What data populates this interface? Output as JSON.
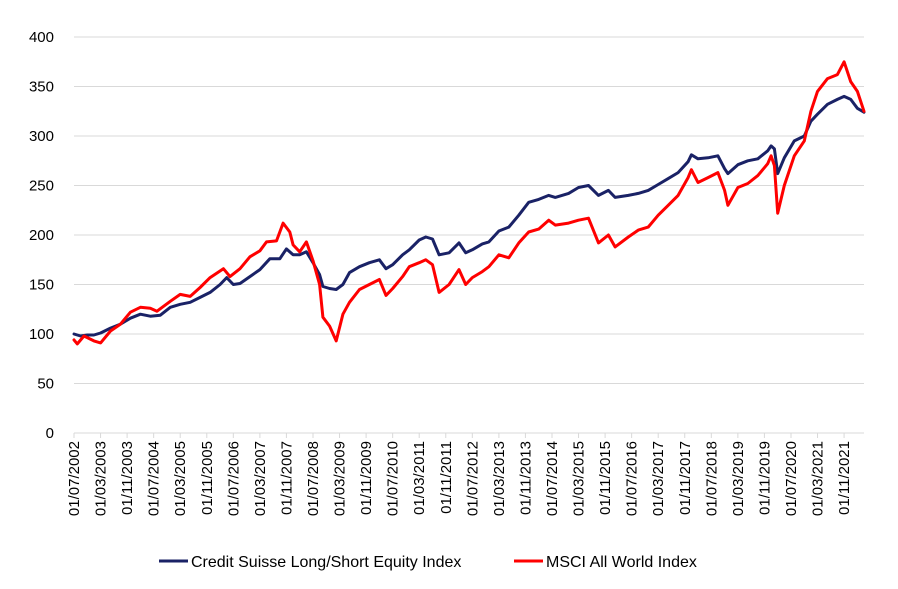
{
  "chart_data": {
    "type": "line",
    "title": "",
    "xlabel": "",
    "ylabel": "",
    "ylim": [
      0,
      400
    ],
    "yticks": [
      0,
      50,
      100,
      150,
      200,
      250,
      300,
      350,
      400
    ],
    "grid": "horizontal",
    "legend_position": "bottom",
    "xlim": [
      "2002-07",
      "2022-05"
    ],
    "xtick_labels": [
      "01/07/2002",
      "01/03/2003",
      "01/11/2003",
      "01/07/2004",
      "01/03/2005",
      "01/11/2005",
      "01/07/2006",
      "01/03/2007",
      "01/11/2007",
      "01/07/2008",
      "01/03/2009",
      "01/11/2009",
      "01/07/2010",
      "01/03/2011",
      "01/11/2011",
      "01/07/2012",
      "01/03/2013",
      "01/11/2013",
      "01/07/2014",
      "01/03/2015",
      "01/11/2015",
      "01/07/2016",
      "01/03/2017",
      "01/11/2017",
      "01/07/2018",
      "01/03/2019",
      "01/11/2019",
      "01/07/2020",
      "01/03/2021",
      "01/11/2021"
    ],
    "series": [
      {
        "name": "Credit Suisse Long/Short Equity Index",
        "color": "#1a2266",
        "points": [
          [
            "2002-07",
            100
          ],
          [
            "2002-09",
            98
          ],
          [
            "2002-11",
            99
          ],
          [
            "2003-01",
            99
          ],
          [
            "2003-03",
            101
          ],
          [
            "2003-06",
            106
          ],
          [
            "2003-09",
            110
          ],
          [
            "2003-12",
            116
          ],
          [
            "2004-03",
            120
          ],
          [
            "2004-06",
            118
          ],
          [
            "2004-09",
            119
          ],
          [
            "2004-12",
            127
          ],
          [
            "2005-03",
            130
          ],
          [
            "2005-06",
            132
          ],
          [
            "2005-09",
            137
          ],
          [
            "2005-12",
            142
          ],
          [
            "2006-03",
            150
          ],
          [
            "2006-05",
            157
          ],
          [
            "2006-07",
            150
          ],
          [
            "2006-09",
            151
          ],
          [
            "2006-12",
            158
          ],
          [
            "2007-03",
            165
          ],
          [
            "2007-06",
            176
          ],
          [
            "2007-09",
            176
          ],
          [
            "2007-11",
            186
          ],
          [
            "2008-01",
            180
          ],
          [
            "2008-03",
            180
          ],
          [
            "2008-05",
            183
          ],
          [
            "2008-07",
            172
          ],
          [
            "2008-09",
            160
          ],
          [
            "2008-10",
            148
          ],
          [
            "2008-12",
            146
          ],
          [
            "2009-02",
            145
          ],
          [
            "2009-04",
            150
          ],
          [
            "2009-06",
            162
          ],
          [
            "2009-09",
            168
          ],
          [
            "2009-12",
            172
          ],
          [
            "2010-03",
            175
          ],
          [
            "2010-05",
            166
          ],
          [
            "2010-07",
            170
          ],
          [
            "2010-10",
            180
          ],
          [
            "2010-12",
            185
          ],
          [
            "2011-03",
            195
          ],
          [
            "2011-05",
            198
          ],
          [
            "2011-07",
            196
          ],
          [
            "2011-09",
            180
          ],
          [
            "2011-12",
            182
          ],
          [
            "2012-03",
            192
          ],
          [
            "2012-05",
            182
          ],
          [
            "2012-07",
            185
          ],
          [
            "2012-10",
            191
          ],
          [
            "2012-12",
            193
          ],
          [
            "2013-03",
            204
          ],
          [
            "2013-06",
            208
          ],
          [
            "2013-09",
            220
          ],
          [
            "2013-12",
            233
          ],
          [
            "2014-03",
            236
          ],
          [
            "2014-06",
            240
          ],
          [
            "2014-08",
            238
          ],
          [
            "2014-12",
            242
          ],
          [
            "2015-03",
            248
          ],
          [
            "2015-06",
            250
          ],
          [
            "2015-09",
            240
          ],
          [
            "2015-12",
            245
          ],
          [
            "2016-02",
            238
          ],
          [
            "2016-06",
            240
          ],
          [
            "2016-09",
            242
          ],
          [
            "2016-12",
            245
          ],
          [
            "2017-03",
            251
          ],
          [
            "2017-06",
            257
          ],
          [
            "2017-09",
            263
          ],
          [
            "2017-12",
            274
          ],
          [
            "2018-01",
            281
          ],
          [
            "2018-03",
            277
          ],
          [
            "2018-06",
            278
          ],
          [
            "2018-09",
            280
          ],
          [
            "2018-11",
            267
          ],
          [
            "2018-12",
            262
          ],
          [
            "2019-03",
            271
          ],
          [
            "2019-06",
            275
          ],
          [
            "2019-09",
            277
          ],
          [
            "2019-12",
            285
          ],
          [
            "2020-01",
            290
          ],
          [
            "2020-02",
            287
          ],
          [
            "2020-03",
            262
          ],
          [
            "2020-05",
            278
          ],
          [
            "2020-08",
            295
          ],
          [
            "2020-11",
            300
          ],
          [
            "2021-01",
            315
          ],
          [
            "2021-03",
            322
          ],
          [
            "2021-06",
            332
          ],
          [
            "2021-09",
            337
          ],
          [
            "2021-11",
            340
          ],
          [
            "2022-01",
            337
          ],
          [
            "2022-03",
            328
          ],
          [
            "2022-05",
            324
          ]
        ]
      },
      {
        "name": "MSCI All World Index",
        "color": "#ff0000",
        "points": [
          [
            "2002-07",
            94
          ],
          [
            "2002-08",
            90
          ],
          [
            "2002-10",
            98
          ],
          [
            "2003-01",
            93
          ],
          [
            "2003-03",
            91
          ],
          [
            "2003-06",
            103
          ],
          [
            "2003-09",
            110
          ],
          [
            "2003-12",
            122
          ],
          [
            "2004-03",
            127
          ],
          [
            "2004-06",
            126
          ],
          [
            "2004-08",
            123
          ],
          [
            "2004-12",
            133
          ],
          [
            "2005-03",
            140
          ],
          [
            "2005-06",
            138
          ],
          [
            "2005-09",
            147
          ],
          [
            "2005-12",
            157
          ],
          [
            "2006-04",
            166
          ],
          [
            "2006-06",
            158
          ],
          [
            "2006-09",
            166
          ],
          [
            "2006-12",
            178
          ],
          [
            "2007-03",
            184
          ],
          [
            "2007-05",
            193
          ],
          [
            "2007-08",
            194
          ],
          [
            "2007-10",
            212
          ],
          [
            "2007-12",
            203
          ],
          [
            "2008-01",
            190
          ],
          [
            "2008-03",
            183
          ],
          [
            "2008-05",
            193
          ],
          [
            "2008-07",
            174
          ],
          [
            "2008-09",
            150
          ],
          [
            "2008-10",
            117
          ],
          [
            "2008-12",
            108
          ],
          [
            "2009-02",
            93
          ],
          [
            "2009-04",
            120
          ],
          [
            "2009-06",
            132
          ],
          [
            "2009-09",
            145
          ],
          [
            "2009-12",
            150
          ],
          [
            "2010-03",
            155
          ],
          [
            "2010-05",
            139
          ],
          [
            "2010-07",
            146
          ],
          [
            "2010-10",
            158
          ],
          [
            "2010-12",
            168
          ],
          [
            "2011-03",
            172
          ],
          [
            "2011-05",
            175
          ],
          [
            "2011-07",
            170
          ],
          [
            "2011-09",
            142
          ],
          [
            "2011-12",
            150
          ],
          [
            "2012-03",
            165
          ],
          [
            "2012-05",
            150
          ],
          [
            "2012-07",
            157
          ],
          [
            "2012-10",
            163
          ],
          [
            "2012-12",
            168
          ],
          [
            "2013-03",
            180
          ],
          [
            "2013-06",
            177
          ],
          [
            "2013-09",
            192
          ],
          [
            "2013-12",
            203
          ],
          [
            "2014-03",
            206
          ],
          [
            "2014-06",
            215
          ],
          [
            "2014-08",
            210
          ],
          [
            "2014-12",
            212
          ],
          [
            "2015-03",
            215
          ],
          [
            "2015-06",
            217
          ],
          [
            "2015-09",
            192
          ],
          [
            "2015-12",
            200
          ],
          [
            "2016-02",
            188
          ],
          [
            "2016-06",
            198
          ],
          [
            "2016-09",
            205
          ],
          [
            "2016-12",
            208
          ],
          [
            "2017-03",
            220
          ],
          [
            "2017-06",
            230
          ],
          [
            "2017-09",
            240
          ],
          [
            "2017-12",
            258
          ],
          [
            "2018-01",
            266
          ],
          [
            "2018-03",
            253
          ],
          [
            "2018-06",
            258
          ],
          [
            "2018-09",
            263
          ],
          [
            "2018-11",
            245
          ],
          [
            "2018-12",
            230
          ],
          [
            "2019-03",
            248
          ],
          [
            "2019-06",
            252
          ],
          [
            "2019-09",
            260
          ],
          [
            "2019-12",
            272
          ],
          [
            "2020-01",
            280
          ],
          [
            "2020-02",
            270
          ],
          [
            "2020-03",
            222
          ],
          [
            "2020-05",
            250
          ],
          [
            "2020-08",
            280
          ],
          [
            "2020-11",
            295
          ],
          [
            "2021-01",
            325
          ],
          [
            "2021-03",
            345
          ],
          [
            "2021-06",
            358
          ],
          [
            "2021-09",
            362
          ],
          [
            "2021-11",
            375
          ],
          [
            "2022-01",
            355
          ],
          [
            "2022-03",
            345
          ],
          [
            "2022-05",
            325
          ]
        ]
      }
    ]
  }
}
